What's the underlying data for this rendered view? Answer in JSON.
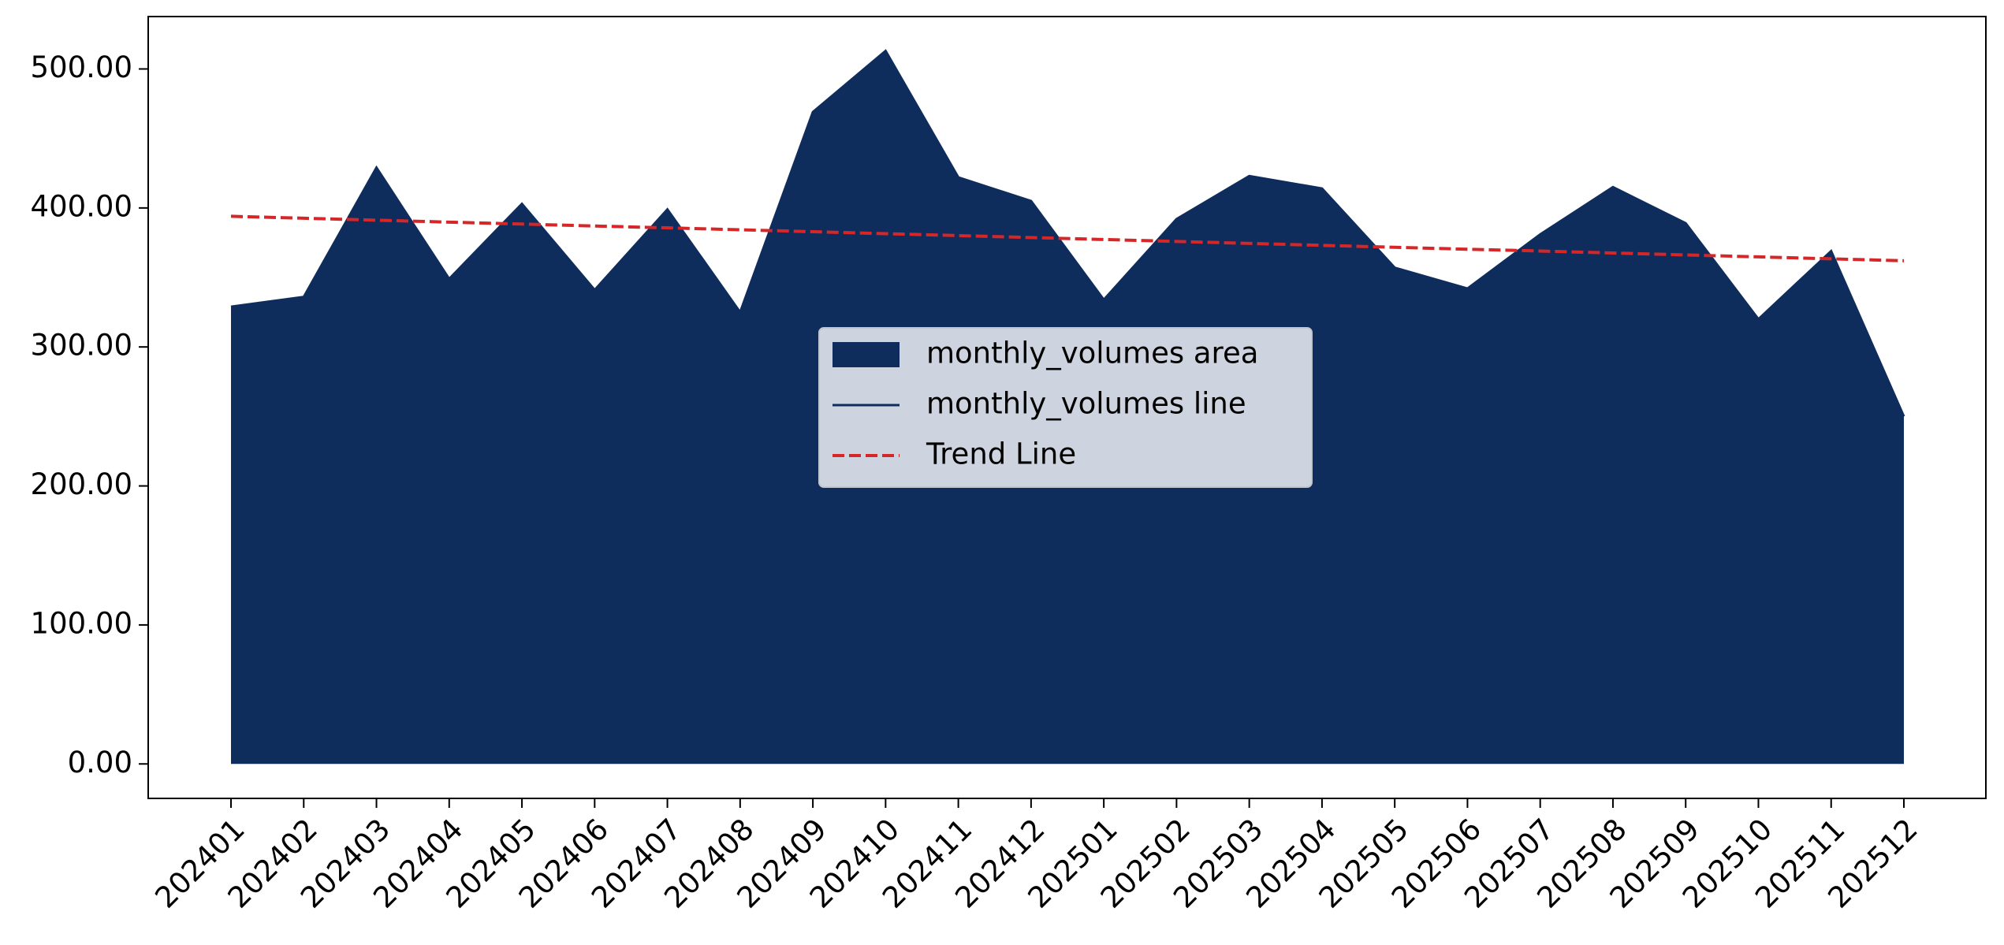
{
  "chart_data": {
    "type": "area",
    "categories": [
      "202401",
      "202402",
      "202403",
      "202404",
      "202405",
      "202406",
      "202407",
      "202408",
      "202409",
      "202410",
      "202411",
      "202412",
      "202501",
      "202502",
      "202503",
      "202504",
      "202505",
      "202506",
      "202507",
      "202508",
      "202509",
      "202510",
      "202511",
      "202512"
    ],
    "series": [
      {
        "name": "monthly_volumes area",
        "color": "#0e2d5c",
        "values": [
          329,
          336,
          429,
          349,
          403,
          341,
          399,
          325,
          469,
          513,
          422,
          405,
          334,
          392,
          423,
          414,
          357,
          342,
          381,
          415,
          389,
          320,
          369,
          250
        ]
      },
      {
        "name": "monthly_volumes line",
        "color": "#0e2d5c",
        "values": [
          329,
          336,
          429,
          349,
          403,
          341,
          399,
          325,
          469,
          513,
          422,
          405,
          334,
          392,
          423,
          414,
          357,
          342,
          381,
          415,
          389,
          320,
          369,
          250
        ]
      },
      {
        "name": "Trend Line",
        "color": "#d62728",
        "dashed": true,
        "values": [
          394,
          392.6,
          391.2,
          389.8,
          388.4,
          387.0,
          385.7,
          384.3,
          382.9,
          381.5,
          380.1,
          378.7,
          377.3,
          375.9,
          374.5,
          373.1,
          371.7,
          370.3,
          369.0,
          367.6,
          366.2,
          364.8,
          363.4,
          362.0
        ]
      }
    ],
    "ylim": [
      -24.8,
      537.7
    ],
    "yticks": [
      {
        "value": 0,
        "label": "0.00"
      },
      {
        "value": 100,
        "label": "100.00"
      },
      {
        "value": 200,
        "label": "200.00"
      },
      {
        "value": 300,
        "label": "300.00"
      },
      {
        "value": 400,
        "label": "400.00"
      },
      {
        "value": 500,
        "label": "500.00"
      }
    ],
    "legend": "center",
    "grid": false
  }
}
